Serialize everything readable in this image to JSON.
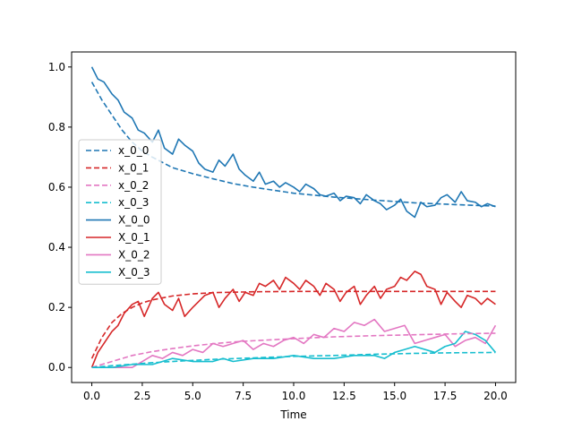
{
  "chart_data": {
    "type": "line",
    "xlabel": "Time",
    "ylabel": "",
    "xlim": [
      -1.0,
      21.0
    ],
    "ylim": [
      -0.05,
      1.05
    ],
    "xticks": [
      0.0,
      2.5,
      5.0,
      7.5,
      10.0,
      12.5,
      15.0,
      17.5,
      20.0
    ],
    "xtick_labels": [
      "0.0",
      "2.5",
      "5.0",
      "7.5",
      "10.0",
      "12.5",
      "15.0",
      "17.5",
      "20.0"
    ],
    "yticks": [
      0.0,
      0.2,
      0.4,
      0.6,
      0.8,
      1.0
    ],
    "ytick_labels": [
      "0.0",
      "0.2",
      "0.4",
      "0.6",
      "0.8",
      "1.0"
    ],
    "grid": false,
    "legend_position": "center-left",
    "series": [
      {
        "name": "x_0_0",
        "style": "dashed",
        "color": "#1f77b4",
        "x": [
          0,
          0.5,
          1,
          1.5,
          2,
          2.5,
          3,
          4,
          5,
          6,
          7,
          8,
          9,
          10,
          12,
          14,
          16,
          18,
          20
        ],
        "y": [
          0.95,
          0.89,
          0.84,
          0.79,
          0.75,
          0.72,
          0.7,
          0.665,
          0.645,
          0.628,
          0.612,
          0.6,
          0.59,
          0.58,
          0.567,
          0.557,
          0.548,
          0.542,
          0.537
        ]
      },
      {
        "name": "x_0_1",
        "style": "dashed",
        "color": "#d62728",
        "x": [
          0,
          0.5,
          1,
          1.5,
          2,
          2.5,
          3,
          4,
          5,
          6,
          8,
          10,
          14,
          20
        ],
        "y": [
          0.03,
          0.1,
          0.15,
          0.18,
          0.2,
          0.215,
          0.225,
          0.238,
          0.245,
          0.249,
          0.252,
          0.253,
          0.253,
          0.253
        ]
      },
      {
        "name": "x_0_2",
        "style": "dashed",
        "color": "#e377c2",
        "x": [
          0,
          1,
          2,
          3,
          4,
          5,
          6,
          7,
          8,
          10,
          12,
          14,
          16,
          18,
          20
        ],
        "y": [
          0.0,
          0.02,
          0.04,
          0.053,
          0.063,
          0.072,
          0.079,
          0.085,
          0.089,
          0.096,
          0.102,
          0.106,
          0.109,
          0.112,
          0.114
        ]
      },
      {
        "name": "x_0_3",
        "style": "dashed",
        "color": "#17becf",
        "x": [
          0,
          1,
          2,
          3,
          4,
          6,
          8,
          10,
          12,
          14,
          16,
          18,
          20
        ],
        "y": [
          0.0,
          0.006,
          0.011,
          0.016,
          0.02,
          0.027,
          0.032,
          0.037,
          0.04,
          0.044,
          0.047,
          0.049,
          0.05
        ]
      },
      {
        "name": "X_0_0",
        "style": "solid",
        "color": "#1f77b4",
        "x": [
          0,
          0.3,
          0.6,
          1.0,
          1.3,
          1.6,
          2.0,
          2.3,
          2.6,
          3.0,
          3.3,
          3.6,
          4.0,
          4.3,
          4.6,
          5.0,
          5.3,
          5.6,
          6.0,
          6.3,
          6.6,
          7.0,
          7.3,
          7.6,
          8.0,
          8.3,
          8.6,
          9.0,
          9.3,
          9.6,
          10.0,
          10.3,
          10.6,
          11.0,
          11.3,
          11.6,
          12.0,
          12.3,
          12.6,
          13.0,
          13.3,
          13.6,
          14.0,
          14.3,
          14.6,
          15.0,
          15.3,
          15.6,
          16.0,
          16.3,
          16.6,
          17.0,
          17.3,
          17.6,
          18.0,
          18.3,
          18.6,
          19.0,
          19.3,
          19.6,
          20.0
        ],
        "y": [
          1.0,
          0.96,
          0.95,
          0.91,
          0.89,
          0.85,
          0.83,
          0.79,
          0.78,
          0.75,
          0.79,
          0.73,
          0.71,
          0.76,
          0.74,
          0.72,
          0.68,
          0.66,
          0.65,
          0.69,
          0.67,
          0.71,
          0.66,
          0.64,
          0.62,
          0.65,
          0.61,
          0.62,
          0.6,
          0.615,
          0.6,
          0.585,
          0.61,
          0.595,
          0.575,
          0.57,
          0.58,
          0.555,
          0.57,
          0.565,
          0.545,
          0.575,
          0.555,
          0.545,
          0.525,
          0.54,
          0.56,
          0.52,
          0.5,
          0.55,
          0.535,
          0.54,
          0.565,
          0.575,
          0.55,
          0.585,
          0.555,
          0.55,
          0.535,
          0.545,
          0.535
        ]
      },
      {
        "name": "X_0_1",
        "style": "solid",
        "color": "#d62728",
        "x": [
          0,
          0.3,
          0.6,
          1.0,
          1.3,
          1.6,
          2.0,
          2.3,
          2.6,
          3.0,
          3.3,
          3.6,
          4.0,
          4.3,
          4.6,
          5.0,
          5.3,
          5.6,
          6.0,
          6.3,
          6.6,
          7.0,
          7.3,
          7.6,
          8.0,
          8.3,
          8.6,
          9.0,
          9.3,
          9.6,
          10.0,
          10.3,
          10.6,
          11.0,
          11.3,
          11.6,
          12.0,
          12.3,
          12.6,
          13.0,
          13.3,
          13.6,
          14.0,
          14.3,
          14.6,
          15.0,
          15.3,
          15.6,
          16.0,
          16.3,
          16.6,
          17.0,
          17.3,
          17.6,
          18.0,
          18.3,
          18.6,
          19.0,
          19.3,
          19.6,
          20.0
        ],
        "y": [
          0.0,
          0.05,
          0.08,
          0.12,
          0.14,
          0.18,
          0.21,
          0.22,
          0.17,
          0.23,
          0.25,
          0.21,
          0.19,
          0.23,
          0.17,
          0.2,
          0.22,
          0.24,
          0.25,
          0.2,
          0.23,
          0.26,
          0.22,
          0.25,
          0.24,
          0.28,
          0.27,
          0.29,
          0.26,
          0.3,
          0.28,
          0.26,
          0.29,
          0.27,
          0.24,
          0.28,
          0.26,
          0.22,
          0.25,
          0.27,
          0.21,
          0.24,
          0.27,
          0.23,
          0.26,
          0.27,
          0.3,
          0.29,
          0.32,
          0.31,
          0.27,
          0.26,
          0.21,
          0.25,
          0.22,
          0.2,
          0.24,
          0.23,
          0.21,
          0.23,
          0.21
        ]
      },
      {
        "name": "X_0_2",
        "style": "solid",
        "color": "#e377c2",
        "x": [
          0,
          1,
          2,
          2.5,
          3,
          3.5,
          4,
          4.5,
          5,
          5.5,
          6,
          6.5,
          7,
          7.5,
          8,
          8.5,
          9,
          9.5,
          10,
          10.5,
          11,
          11.5,
          12,
          12.5,
          13,
          13.5,
          14,
          14.5,
          15,
          15.5,
          16,
          16.5,
          17,
          17.5,
          18,
          18.5,
          19,
          19.5,
          20
        ],
        "y": [
          0.0,
          0.0,
          0.0,
          0.02,
          0.04,
          0.03,
          0.05,
          0.04,
          0.06,
          0.05,
          0.08,
          0.07,
          0.08,
          0.09,
          0.06,
          0.08,
          0.07,
          0.09,
          0.1,
          0.08,
          0.11,
          0.1,
          0.13,
          0.12,
          0.15,
          0.14,
          0.16,
          0.12,
          0.13,
          0.14,
          0.08,
          0.09,
          0.1,
          0.11,
          0.07,
          0.09,
          0.1,
          0.08,
          0.14
        ]
      },
      {
        "name": "X_0_3",
        "style": "solid",
        "color": "#17becf",
        "x": [
          0,
          1,
          2,
          3,
          3.5,
          4,
          5,
          6,
          6.5,
          7,
          8,
          9,
          10,
          11,
          12,
          13,
          14,
          14.5,
          15,
          15.5,
          16,
          17,
          17.5,
          18,
          18.5,
          19,
          19.5,
          20
        ],
        "y": [
          0.0,
          0.0,
          0.01,
          0.01,
          0.02,
          0.03,
          0.02,
          0.02,
          0.03,
          0.02,
          0.03,
          0.03,
          0.04,
          0.03,
          0.03,
          0.04,
          0.04,
          0.03,
          0.05,
          0.06,
          0.07,
          0.05,
          0.07,
          0.08,
          0.12,
          0.11,
          0.09,
          0.05
        ]
      }
    ]
  },
  "colors": {
    "x_0_0": "#1f77b4",
    "x_0_1": "#d62728",
    "x_0_2": "#e377c2",
    "x_0_3": "#17becf"
  }
}
